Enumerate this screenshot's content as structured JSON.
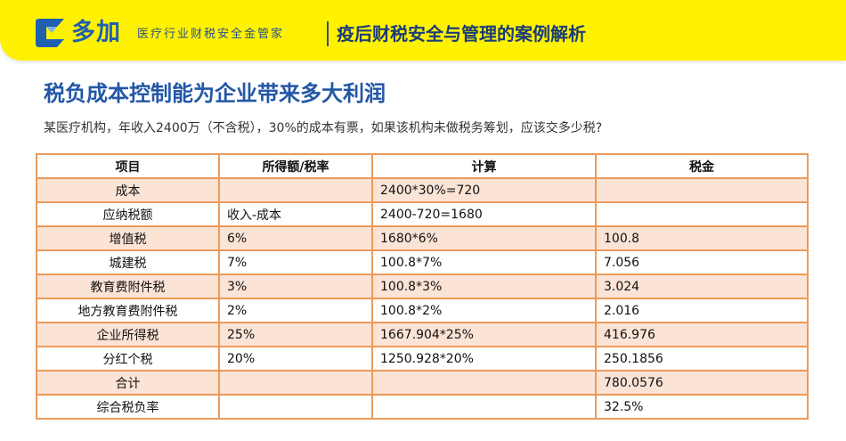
{
  "brand": {
    "name": "多加",
    "tagline": "医疗行业财税安全金管家",
    "accent": "#fff200",
    "primary": "#1f5fb0"
  },
  "banner": {
    "title": "疫后财税安全与管理的案例解析"
  },
  "heading": "税负成本控制能为企业带来多大利润",
  "question": "某医疗机构，年收入2400万（不含税），30%的成本有票，如果该机构未做税务筹划，应该交多少税?",
  "table": {
    "headers": [
      "项目",
      "所得额/税率",
      "计算",
      "税金"
    ],
    "rows": [
      [
        "成本",
        "",
        "2400*30%=720",
        ""
      ],
      [
        "应纳税额",
        "收入-成本",
        "2400-720=1680",
        ""
      ],
      [
        "增值税",
        "6%",
        "1680*6%",
        "100.8"
      ],
      [
        "城建税",
        "7%",
        "100.8*7%",
        "7.056"
      ],
      [
        "教育费附件税",
        "3%",
        "100.8*3%",
        "3.024"
      ],
      [
        "地方教育费附件税",
        "2%",
        "100.8*2%",
        "2.016"
      ],
      [
        "企业所得税",
        "25%",
        "1667.904*25%",
        "416.976"
      ],
      [
        "分红个税",
        "20%",
        "1250.928*20%",
        "250.1856"
      ],
      [
        "合计",
        "",
        "",
        "780.0576"
      ],
      [
        "综合税负率",
        "",
        "",
        "32.5%"
      ]
    ]
  }
}
